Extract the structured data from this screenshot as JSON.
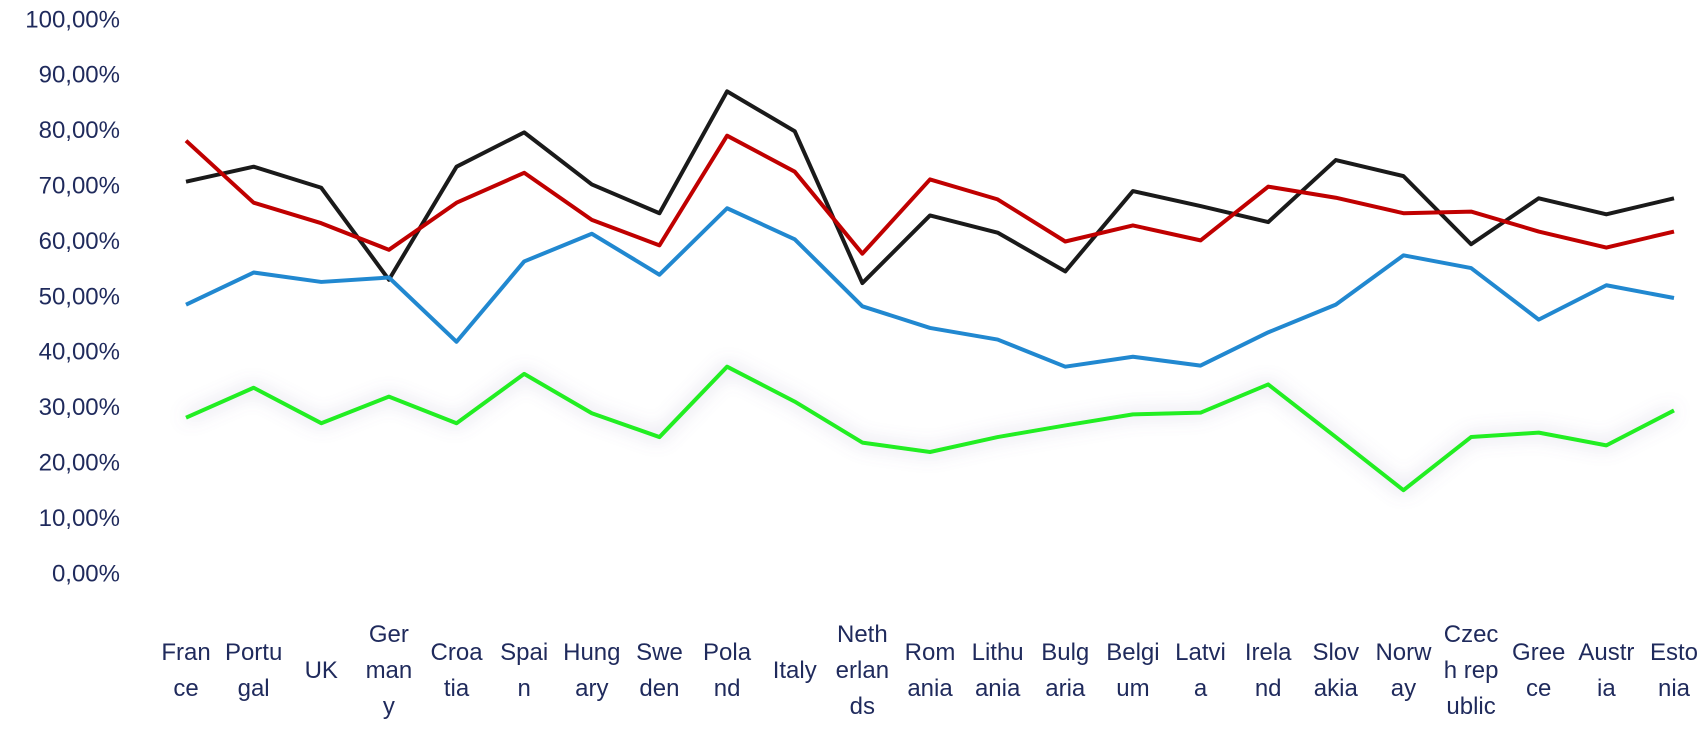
{
  "chart_data": {
    "type": "line",
    "categories": [
      "France",
      "Portugal",
      "UK",
      "Germany",
      "Croatia",
      "Spain",
      "Hungary",
      "Sweden",
      "Poland",
      "Italy",
      "Netherlands",
      "Romania",
      "Lithuania",
      "Bulgaria",
      "Belgium",
      "Latvia",
      "Ireland",
      "Slovakia",
      "Norway",
      "Czech republic",
      "Greece",
      "Austria",
      "Estonia"
    ],
    "series": [
      {
        "color": "#1a1a1a",
        "values": [
          71,
          73.7,
          69.9,
          53.3,
          73.7,
          79.9,
          70.5,
          65.3,
          87.3,
          80.1,
          52.7,
          64.9,
          61.8,
          54.8,
          69.3,
          66.6,
          63.7,
          74.9,
          72,
          59.7,
          68,
          65.1,
          68
        ]
      },
      {
        "color": "#c00000",
        "values": [
          78.4,
          67.2,
          63.5,
          58.7,
          67.2,
          72.6,
          64.1,
          59.5,
          79.3,
          72.8,
          58,
          71.4,
          67.8,
          60.2,
          63.1,
          60.4,
          70.1,
          68.1,
          65.3,
          65.6,
          62,
          59.1,
          62
        ]
      },
      {
        "color": "#2188d0",
        "values": [
          48.8,
          54.6,
          52.9,
          53.7,
          42.1,
          56.6,
          61.6,
          54.2,
          66.2,
          60.6,
          48.5,
          44.6,
          42.5,
          37.6,
          39.4,
          37.8,
          43.8,
          48.8,
          57.7,
          55.4,
          46.1,
          52.3,
          50
        ]
      },
      {
        "color": "#22ee22",
        "glow": true,
        "values": [
          28.4,
          33.8,
          27.4,
          32.2,
          27.4,
          36.3,
          29.2,
          24.9,
          37.6,
          31.3,
          23.9,
          22.2,
          24.9,
          27,
          29,
          29.3,
          34.4,
          24.9,
          15.3,
          24.9,
          25.7,
          23.4,
          29.7
        ]
      }
    ],
    "ylim": [
      0,
      100
    ],
    "yticks": [
      {
        "value": 0,
        "label": "0,00%"
      },
      {
        "value": 10,
        "label": "10,00%"
      },
      {
        "value": 20,
        "label": "20,00%"
      },
      {
        "value": 30,
        "label": "30,00%"
      },
      {
        "value": 40,
        "label": "40,00%"
      },
      {
        "value": 50,
        "label": "50,00%"
      },
      {
        "value": 60,
        "label": "60,00%"
      },
      {
        "value": 70,
        "label": "70,00%"
      },
      {
        "value": 80,
        "label": "80,00%"
      },
      {
        "value": 90,
        "label": "90,00%"
      },
      {
        "value": 100,
        "label": "100,00%"
      }
    ],
    "grid": false
  }
}
